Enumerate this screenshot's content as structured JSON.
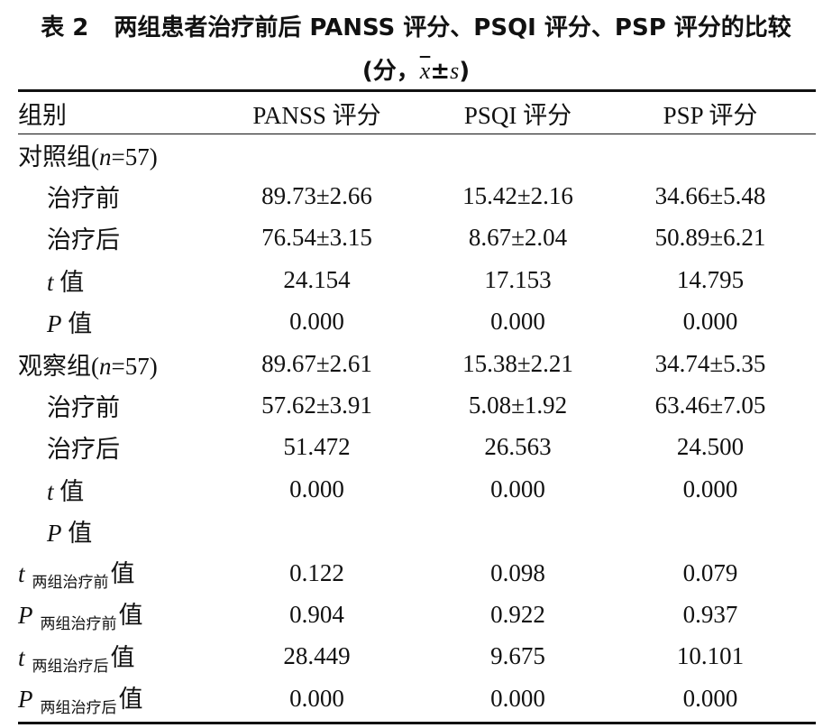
{
  "title": {
    "label": "表 2",
    "text": "两组患者治疗前后 PANSS 评分、PSQI 评分、PSP 评分的比较",
    "unit_open": "(分，",
    "mean": "x",
    "pm": "±",
    "sd": "s",
    "unit_close": ")"
  },
  "header": {
    "group": "组别",
    "panss": "PANSS 评分",
    "psqi": "PSQI 评分",
    "psp": "PSP 评分"
  },
  "rows": [
    {
      "label": "对照组(",
      "n_symbol": "n",
      "n_value": "=57)",
      "panss": "",
      "psqi": "",
      "psp": ""
    },
    {
      "label": "治疗前",
      "panss": "89.73±2.66",
      "psqi": "15.42±2.16",
      "psp": "34.66±5.48"
    },
    {
      "label": "治疗后",
      "panss": "76.54±3.15",
      "psqi": "8.67±2.04",
      "psp": "50.89±6.21"
    },
    {
      "stat": "t",
      "label": "值",
      "panss": "24.154",
      "psqi": "17.153",
      "psp": "14.795"
    },
    {
      "stat": "P",
      "label": "值",
      "panss": "0.000",
      "psqi": "0.000",
      "psp": "0.000"
    },
    {
      "label": "观察组(",
      "n_symbol": "n",
      "n_value": "=57)",
      "panss": "89.67±2.61",
      "psqi": "15.38±2.21",
      "psp": "34.74±5.35"
    },
    {
      "label": "治疗前",
      "panss": "57.62±3.91",
      "psqi": "5.08±1.92",
      "psp": "63.46±7.05"
    },
    {
      "label": "治疗后",
      "panss": "51.472",
      "psqi": "26.563",
      "psp": "24.500"
    },
    {
      "stat": "t",
      "label": "值",
      "panss": "0.000",
      "psqi": "0.000",
      "psp": "0.000"
    },
    {
      "stat": "P",
      "label": "值",
      "panss": "",
      "psqi": "",
      "psp": ""
    },
    {
      "stat": "t",
      "sub": "两组治疗前",
      "label": "值",
      "panss": "0.122",
      "psqi": "0.098",
      "psp": "0.079"
    },
    {
      "stat": "P",
      "sub": "两组治疗前",
      "label": "值",
      "panss": "0.904",
      "psqi": "0.922",
      "psp": "0.937"
    },
    {
      "stat": "t",
      "sub": "两组治疗后",
      "label": "值",
      "panss": "28.449",
      "psqi": "9.675",
      "psp": "10.101"
    },
    {
      "stat": "P",
      "sub": "两组治疗后",
      "label": "值",
      "panss": "0.000",
      "psqi": "0.000",
      "psp": "0.000"
    }
  ]
}
